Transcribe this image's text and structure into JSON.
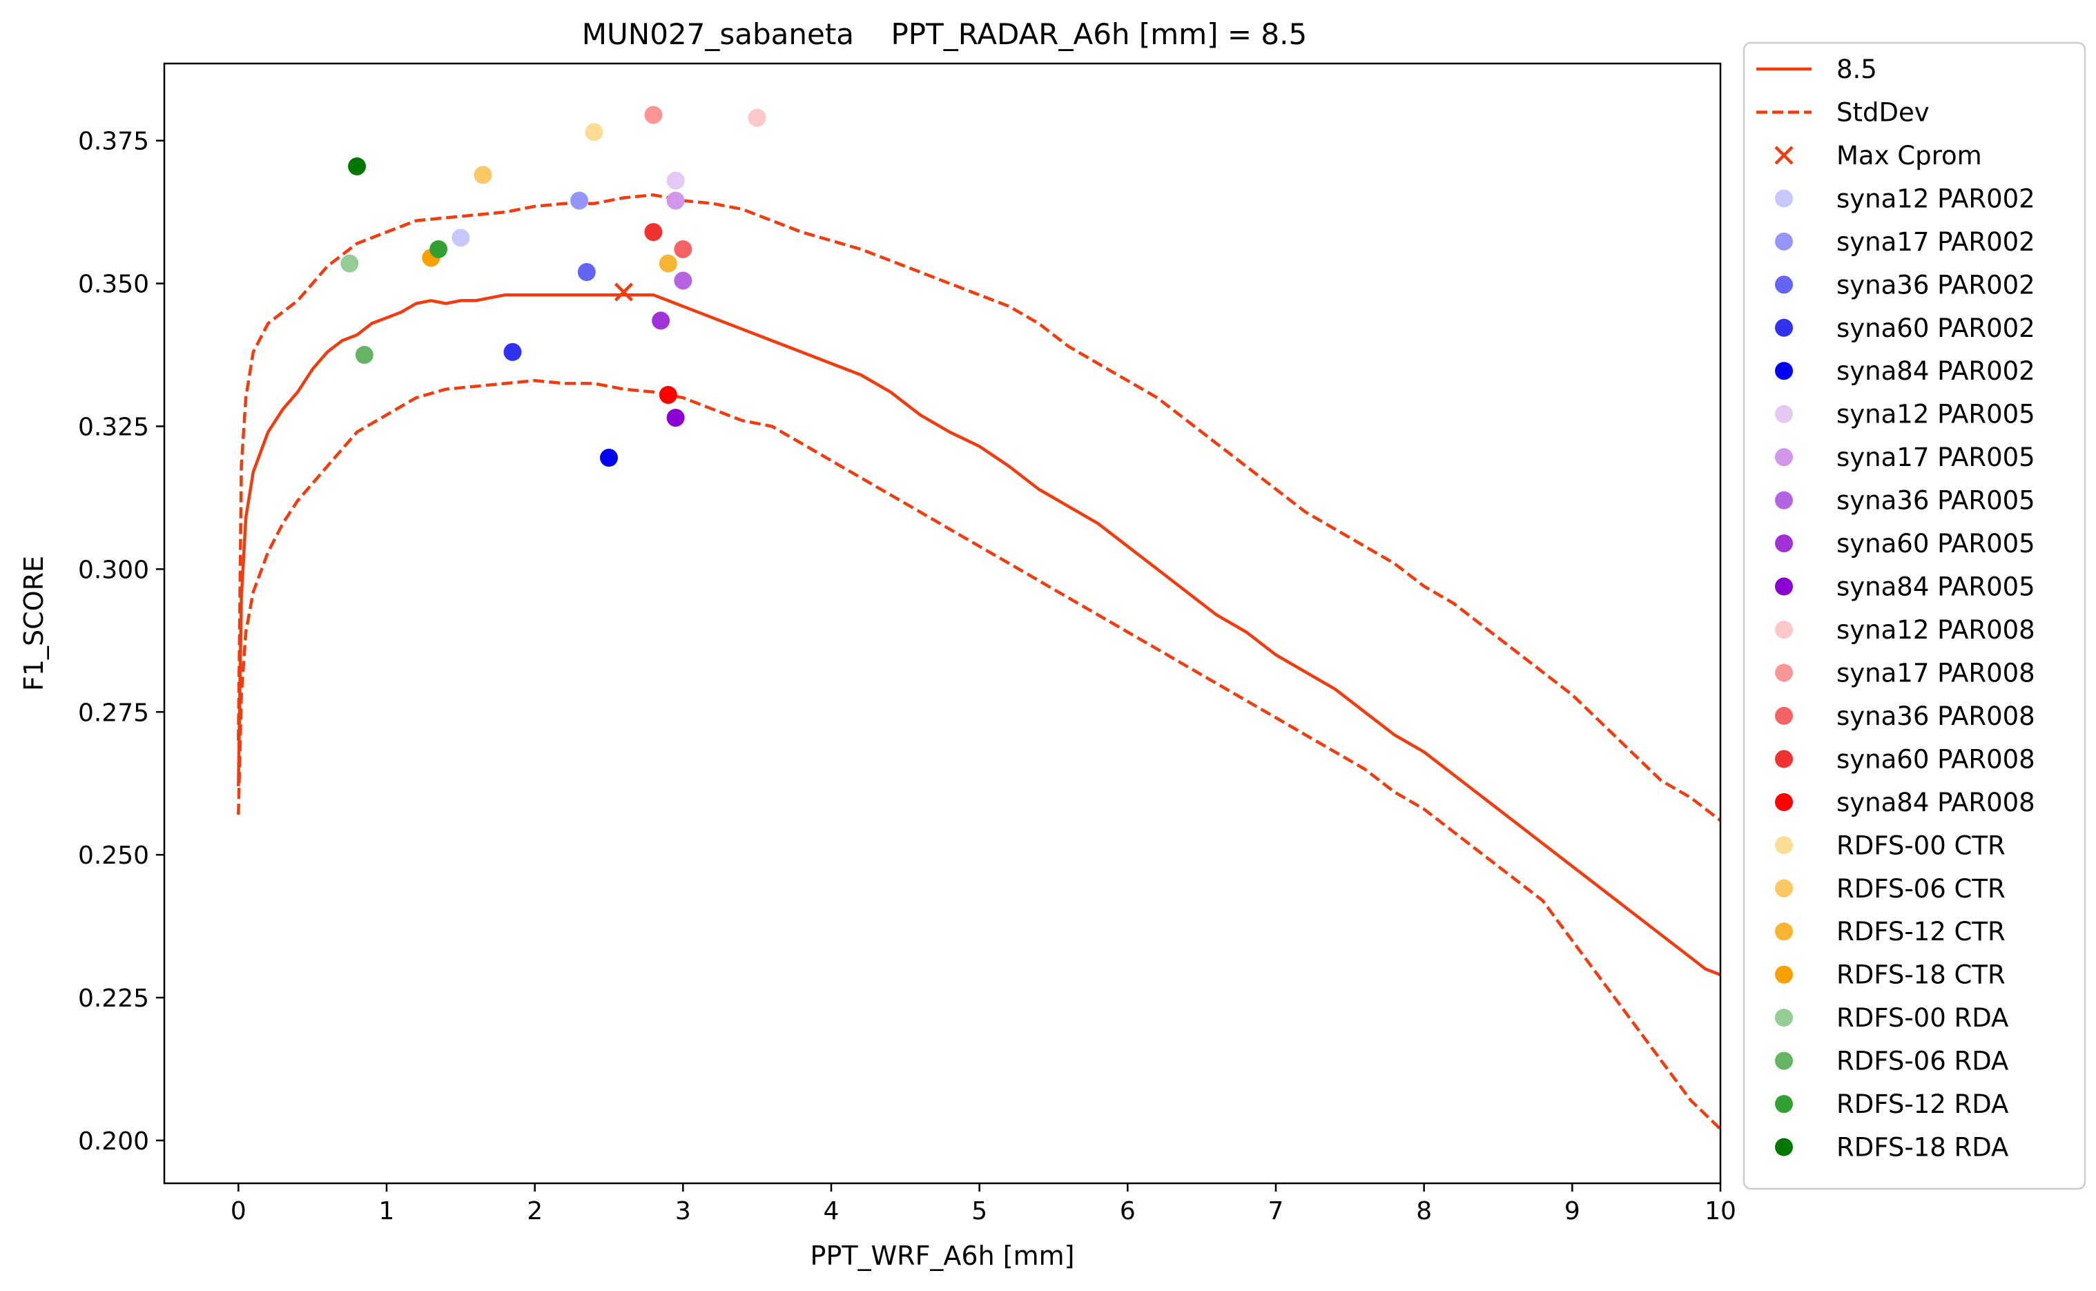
{
  "chart_data": {
    "type": "line",
    "title": "MUN027_sabaneta    PPT_RADAR_A6h [mm] = 8.5",
    "xlabel": "PPT_WRF_A6h [mm]",
    "ylabel": "F1_SCORE",
    "xlim": [
      -0.5,
      10
    ],
    "ylim": [
      0.1925,
      0.3885
    ],
    "x_ticks": [
      0,
      1,
      2,
      3,
      4,
      5,
      6,
      7,
      8,
      9,
      10
    ],
    "y_ticks": [
      0.2,
      0.225,
      0.25,
      0.275,
      0.3,
      0.325,
      0.35,
      0.375
    ],
    "x_tick_labels": [
      "0",
      "1",
      "2",
      "3",
      "4",
      "5",
      "6",
      "7",
      "8",
      "9",
      "10"
    ],
    "y_tick_labels": [
      "0.200",
      "0.225",
      "0.250",
      "0.275",
      "0.300",
      "0.325",
      "0.350",
      "0.375"
    ],
    "grid": false,
    "legend_position": "outside-right",
    "line_color": "#f03c0f",
    "series": [
      {
        "name": "8.5",
        "style": "solid",
        "x": [
          0,
          0.02,
          0.05,
          0.1,
          0.2,
          0.3,
          0.4,
          0.5,
          0.6,
          0.7,
          0.8,
          0.9,
          1.0,
          1.1,
          1.2,
          1.3,
          1.4,
          1.5,
          1.6,
          1.7,
          1.8,
          1.9,
          2.0,
          2.1,
          2.2,
          2.3,
          2.4,
          2.5,
          2.6,
          2.7,
          2.8,
          2.9,
          3.0,
          3.2,
          3.4,
          3.6,
          3.8,
          4.0,
          4.2,
          4.4,
          4.6,
          4.8,
          5.0,
          5.2,
          5.4,
          5.6,
          5.8,
          6.0,
          6.2,
          6.4,
          6.6,
          6.8,
          7.0,
          7.2,
          7.4,
          7.6,
          7.8,
          8.0,
          8.2,
          8.4,
          8.6,
          8.8,
          9.0,
          9.2,
          9.4,
          9.6,
          9.8,
          9.9,
          10.0
        ],
        "y": [
          0.262,
          0.295,
          0.309,
          0.317,
          0.324,
          0.328,
          0.331,
          0.335,
          0.338,
          0.34,
          0.341,
          0.343,
          0.344,
          0.345,
          0.3465,
          0.347,
          0.3465,
          0.347,
          0.347,
          0.3475,
          0.348,
          0.348,
          0.348,
          0.348,
          0.348,
          0.348,
          0.348,
          0.348,
          0.348,
          0.348,
          0.348,
          0.347,
          0.346,
          0.344,
          0.342,
          0.34,
          0.338,
          0.336,
          0.334,
          0.331,
          0.327,
          0.324,
          0.3215,
          0.318,
          0.314,
          0.311,
          0.308,
          0.304,
          0.3,
          0.296,
          0.292,
          0.289,
          0.285,
          0.282,
          0.279,
          0.275,
          0.271,
          0.268,
          0.264,
          0.26,
          0.256,
          0.252,
          0.248,
          0.244,
          0.24,
          0.236,
          0.232,
          0.23,
          0.229
        ]
      },
      {
        "name": "StdDev",
        "style": "dashed",
        "x": [
          0,
          0.02,
          0.05,
          0.1,
          0.2,
          0.3,
          0.4,
          0.5,
          0.6,
          0.7,
          0.8,
          1.0,
          1.2,
          1.4,
          1.6,
          1.8,
          2.0,
          2.2,
          2.4,
          2.6,
          2.8,
          3.0,
          3.2,
          3.4,
          3.6,
          3.8,
          4.0,
          4.2,
          4.4,
          4.6,
          4.8,
          5.0,
          5.2,
          5.4,
          5.6,
          5.8,
          6.0,
          6.2,
          6.4,
          6.6,
          6.8,
          7.0,
          7.2,
          7.4,
          7.6,
          7.8,
          8.0,
          8.2,
          8.4,
          8.6,
          8.8,
          9.0,
          9.2,
          9.4,
          9.6,
          9.8,
          10.0
        ],
        "y": [
          0.27,
          0.318,
          0.33,
          0.338,
          0.343,
          0.345,
          0.347,
          0.35,
          0.353,
          0.355,
          0.357,
          0.359,
          0.361,
          0.3615,
          0.362,
          0.3625,
          0.3635,
          0.364,
          0.364,
          0.365,
          0.3655,
          0.3645,
          0.364,
          0.363,
          0.361,
          0.359,
          0.3575,
          0.356,
          0.354,
          0.352,
          0.35,
          0.348,
          0.346,
          0.343,
          0.339,
          0.336,
          0.333,
          0.33,
          0.326,
          0.322,
          0.318,
          0.314,
          0.31,
          0.307,
          0.304,
          0.301,
          0.297,
          0.294,
          0.29,
          0.286,
          0.282,
          0.278,
          0.273,
          0.268,
          0.263,
          0.26,
          0.256
        ]
      },
      {
        "name": "",
        "style": "dashed",
        "x": [
          0,
          0.02,
          0.05,
          0.1,
          0.2,
          0.3,
          0.4,
          0.5,
          0.6,
          0.7,
          0.8,
          1.0,
          1.2,
          1.4,
          1.6,
          1.8,
          2.0,
          2.2,
          2.4,
          2.6,
          2.8,
          3.0,
          3.2,
          3.4,
          3.6,
          3.8,
          4.0,
          4.2,
          4.4,
          4.6,
          4.8,
          5.0,
          5.2,
          5.4,
          5.6,
          5.8,
          6.0,
          6.2,
          6.4,
          6.6,
          6.8,
          7.0,
          7.2,
          7.4,
          7.6,
          7.8,
          8.0,
          8.2,
          8.4,
          8.6,
          8.8,
          9.0,
          9.2,
          9.4,
          9.6,
          9.8,
          10.0
        ],
        "y": [
          0.257,
          0.278,
          0.289,
          0.296,
          0.303,
          0.308,
          0.312,
          0.315,
          0.318,
          0.321,
          0.324,
          0.327,
          0.33,
          0.3315,
          0.332,
          0.3325,
          0.333,
          0.3325,
          0.3325,
          0.3315,
          0.331,
          0.33,
          0.328,
          0.326,
          0.325,
          0.322,
          0.319,
          0.316,
          0.313,
          0.31,
          0.307,
          0.304,
          0.301,
          0.298,
          0.295,
          0.292,
          0.289,
          0.286,
          0.283,
          0.28,
          0.277,
          0.274,
          0.271,
          0.268,
          0.265,
          0.261,
          0.258,
          0.254,
          0.25,
          0.246,
          0.242,
          0.235,
          0.228,
          0.221,
          0.214,
          0.207,
          0.202
        ]
      }
    ],
    "max_point": {
      "name": "Max Cprom",
      "x": 2.6,
      "y": 0.3485
    },
    "scatter": [
      {
        "name": "syna12 PAR002",
        "color": "#c8c8ff",
        "x": 1.5,
        "y": 0.358
      },
      {
        "name": "syna17 PAR002",
        "color": "#9696fa",
        "x": 2.3,
        "y": 0.3645
      },
      {
        "name": "syna36 PAR002",
        "color": "#6464f5",
        "x": 2.35,
        "y": 0.352
      },
      {
        "name": "syna60 PAR002",
        "color": "#3232ee",
        "x": 1.85,
        "y": 0.338
      },
      {
        "name": "syna84 PAR002",
        "color": "#0000f0",
        "x": 2.5,
        "y": 0.3195
      },
      {
        "name": "syna12 PAR005",
        "color": "#e6c8f5",
        "x": 2.95,
        "y": 0.368
      },
      {
        "name": "syna17 PAR005",
        "color": "#d296eb",
        "x": 2.95,
        "y": 0.3645
      },
      {
        "name": "syna36 PAR005",
        "color": "#b464e1",
        "x": 3.0,
        "y": 0.3505
      },
      {
        "name": "syna60 PAR005",
        "color": "#a032d7",
        "x": 2.85,
        "y": 0.3435
      },
      {
        "name": "syna84 PAR005",
        "color": "#8c00d2",
        "x": 2.95,
        "y": 0.3265
      },
      {
        "name": "syna12 PAR008",
        "color": "#ffc8c8",
        "x": 3.5,
        "y": 0.379
      },
      {
        "name": "syna17 PAR008",
        "color": "#fa9696",
        "x": 2.8,
        "y": 0.3795
      },
      {
        "name": "syna36 PAR008",
        "color": "#f56464",
        "x": 3.0,
        "y": 0.356
      },
      {
        "name": "syna60 PAR008",
        "color": "#f03232",
        "x": 2.8,
        "y": 0.359
      },
      {
        "name": "syna84 PAR008",
        "color": "#ff0000",
        "x": 2.9,
        "y": 0.3305
      },
      {
        "name": "RDFS-00 CTR",
        "color": "#fddc96",
        "x": 2.4,
        "y": 0.3765
      },
      {
        "name": "RDFS-06 CTR",
        "color": "#fbc864",
        "x": 1.65,
        "y": 0.369
      },
      {
        "name": "RDFS-12 CTR",
        "color": "#f9b432",
        "x": 2.9,
        "y": 0.3535
      },
      {
        "name": "RDFS-18 CTR",
        "color": "#f7a000",
        "x": 1.3,
        "y": 0.3545
      },
      {
        "name": "RDFS-00 RDA",
        "color": "#96cd96",
        "x": 0.75,
        "y": 0.3535
      },
      {
        "name": "RDFS-06 RDA",
        "color": "#64b464",
        "x": 0.85,
        "y": 0.3375
      },
      {
        "name": "RDFS-12 RDA",
        "color": "#32a032",
        "x": 1.35,
        "y": 0.356
      },
      {
        "name": "RDFS-18 RDA",
        "color": "#007800",
        "x": 0.8,
        "y": 0.3705
      }
    ],
    "legend_entries": [
      {
        "label": "8.5",
        "kind": "solid"
      },
      {
        "label": "StdDev",
        "kind": "dashed"
      },
      {
        "label": "Max Cprom",
        "kind": "x"
      },
      {
        "label": "syna12 PAR002",
        "kind": "dot",
        "color": "#c8c8ff"
      },
      {
        "label": "syna17 PAR002",
        "kind": "dot",
        "color": "#9696fa"
      },
      {
        "label": "syna36 PAR002",
        "kind": "dot",
        "color": "#6464f5"
      },
      {
        "label": "syna60 PAR002",
        "kind": "dot",
        "color": "#3232ee"
      },
      {
        "label": "syna84 PAR002",
        "kind": "dot",
        "color": "#0000f0"
      },
      {
        "label": "syna12 PAR005",
        "kind": "dot",
        "color": "#e6c8f5"
      },
      {
        "label": "syna17 PAR005",
        "kind": "dot",
        "color": "#d296eb"
      },
      {
        "label": "syna36 PAR005",
        "kind": "dot",
        "color": "#b464e1"
      },
      {
        "label": "syna60 PAR005",
        "kind": "dot",
        "color": "#a032d7"
      },
      {
        "label": "syna84 PAR005",
        "kind": "dot",
        "color": "#8c00d2"
      },
      {
        "label": "syna12 PAR008",
        "kind": "dot",
        "color": "#ffc8c8"
      },
      {
        "label": "syna17 PAR008",
        "kind": "dot",
        "color": "#fa9696"
      },
      {
        "label": "syna36 PAR008",
        "kind": "dot",
        "color": "#f56464"
      },
      {
        "label": "syna60 PAR008",
        "kind": "dot",
        "color": "#f03232"
      },
      {
        "label": "syna84 PAR008",
        "kind": "dot",
        "color": "#ff0000"
      },
      {
        "label": "RDFS-00 CTR",
        "kind": "dot",
        "color": "#fddc96"
      },
      {
        "label": "RDFS-06 CTR",
        "kind": "dot",
        "color": "#fbc864"
      },
      {
        "label": "RDFS-12 CTR",
        "kind": "dot",
        "color": "#f9b432"
      },
      {
        "label": "RDFS-18 CTR",
        "kind": "dot",
        "color": "#f7a000"
      },
      {
        "label": "RDFS-00 RDA",
        "kind": "dot",
        "color": "#96cd96"
      },
      {
        "label": "RDFS-06 RDA",
        "kind": "dot",
        "color": "#64b464"
      },
      {
        "label": "RDFS-12 RDA",
        "kind": "dot",
        "color": "#32a032"
      },
      {
        "label": "RDFS-18 RDA",
        "kind": "dot",
        "color": "#007800"
      }
    ]
  }
}
